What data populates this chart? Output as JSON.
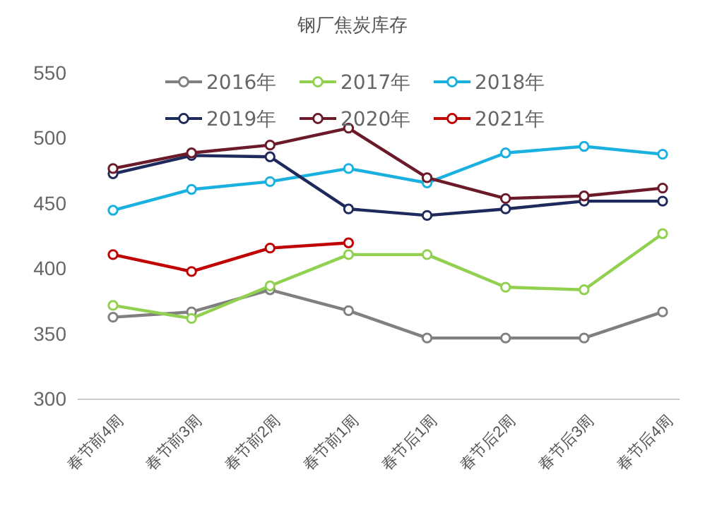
{
  "chart_data": {
    "type": "line",
    "title": "钢厂焦炭库存",
    "categories": [
      "春节前4周",
      "春节前3周",
      "春节前2周",
      "春节前1周",
      "春节后1周",
      "春节后2周",
      "春节后3周",
      "春节后4周"
    ],
    "series": [
      {
        "name": "2016年",
        "color": "#808080",
        "values": [
          363,
          367,
          384,
          368,
          347,
          347,
          347,
          367
        ]
      },
      {
        "name": "2017年",
        "color": "#92d050",
        "values": [
          372,
          362,
          387,
          411,
          411,
          386,
          384,
          427
        ]
      },
      {
        "name": "2018年",
        "color": "#1ab0e0",
        "values": [
          445,
          461,
          467,
          477,
          466,
          489,
          494,
          488
        ]
      },
      {
        "name": "2019年",
        "color": "#1f2a5c",
        "values": [
          473,
          487,
          486,
          446,
          441,
          446,
          452,
          452
        ]
      },
      {
        "name": "2020年",
        "color": "#6b1a2a",
        "values": [
          477,
          489,
          495,
          508,
          470,
          454,
          456,
          462
        ]
      },
      {
        "name": "2021年",
        "color": "#c00000",
        "values": [
          411,
          398,
          416,
          420,
          null,
          null,
          null,
          null
        ]
      }
    ],
    "ylim": [
      300,
      550
    ],
    "yticks": [
      300,
      350,
      400,
      450,
      500,
      550
    ],
    "grid": false,
    "legend": "top",
    "marker": "circle",
    "line_style": "solid"
  }
}
